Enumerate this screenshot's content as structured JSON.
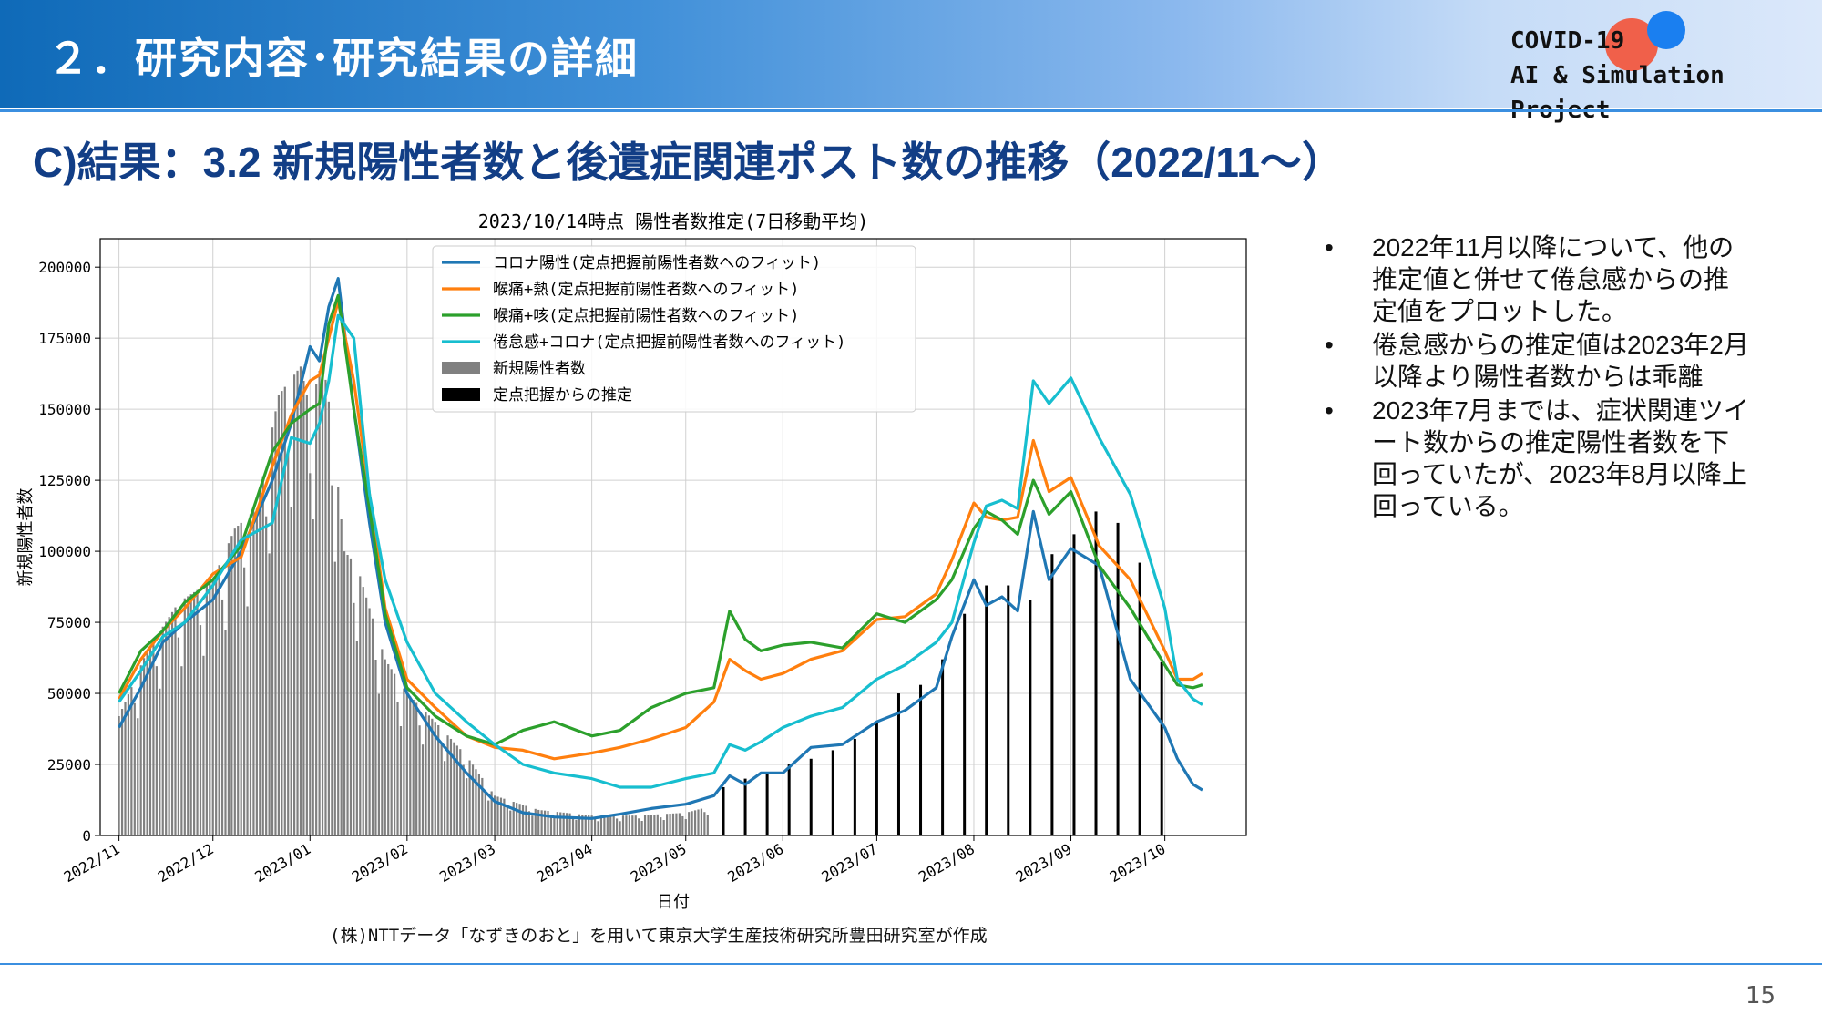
{
  "header": {
    "title": "２．研究内容･研究結果の詳細",
    "logo_line1": "COVID-19",
    "logo_line2": "AI & Simulation Project"
  },
  "subtitle": "C)結果：3.2 新規陽性者数と後遺症関連ポスト数の推移（2022/11～）",
  "bullets": [
    "2022年11月以降について、他の推定値と併せて倦怠感からの推定値をプロットした。",
    "倦怠感からの推定値は2023年2月以降より陽性者数からは乖離",
    "2023年7月までは、症状関連ツイート数からの推定陽性者数を下回っていたが、2023年8月以降上回っている。"
  ],
  "bullet_symbol": "•",
  "credit": "(株)NTTデータ「なずきのおと」を用いて東京大学生産技術研究所豊田研究室が作成",
  "page_number": "15",
  "colors": {
    "corona": "#1f77b4",
    "fever": "#ff7f0e",
    "cough": "#2ca02c",
    "fatigue": "#17becf",
    "bars": "#808080",
    "estimate": "#000000",
    "accent": "#123e86"
  },
  "chart_data": {
    "type": "line",
    "title": "2023/10/14時点 陽性者数推定(7日移動平均)",
    "xlabel": "日付",
    "ylabel": "新規陽性者数",
    "ylim": [
      0,
      210000
    ],
    "xlim": [
      "2022-10-26",
      "2023-10-27"
    ],
    "grid": true,
    "legend_position": "top-center",
    "x_ticks": [
      "2022/11",
      "2022/12",
      "2023/01",
      "2023/02",
      "2023/03",
      "2023/04",
      "2023/05",
      "2023/06",
      "2023/07",
      "2023/08",
      "2023/09",
      "2023/10"
    ],
    "x_tick_dates": [
      "2022-11-01",
      "2022-12-01",
      "2023-01-01",
      "2023-02-01",
      "2023-03-01",
      "2023-04-01",
      "2023-05-01",
      "2023-06-01",
      "2023-07-01",
      "2023-08-01",
      "2023-09-01",
      "2023-10-01"
    ],
    "y_ticks": [
      0,
      25000,
      50000,
      75000,
      100000,
      125000,
      150000,
      175000,
      200000
    ],
    "series": [
      {
        "name": "コロナ陽性(定点把握前陽性者数へのフィット)",
        "color": "#1f77b4",
        "x": [
          "2022-11-01",
          "2022-11-08",
          "2022-11-15",
          "2022-11-22",
          "2022-12-01",
          "2022-12-10",
          "2022-12-20",
          "2022-12-26",
          "2023-01-01",
          "2023-01-04",
          "2023-01-07",
          "2023-01-10",
          "2023-01-15",
          "2023-01-20",
          "2023-01-25",
          "2023-02-01",
          "2023-02-10",
          "2023-02-20",
          "2023-03-01",
          "2023-03-10",
          "2023-03-20",
          "2023-04-01",
          "2023-04-10",
          "2023-04-20",
          "2023-05-01",
          "2023-05-10",
          "2023-05-15",
          "2023-05-20",
          "2023-05-25",
          "2023-06-01",
          "2023-06-10",
          "2023-06-20",
          "2023-07-01",
          "2023-07-10",
          "2023-07-20",
          "2023-07-25",
          "2023-08-01",
          "2023-08-05",
          "2023-08-10",
          "2023-08-15",
          "2023-08-20",
          "2023-08-25",
          "2023-09-01",
          "2023-09-10",
          "2023-09-20",
          "2023-10-01",
          "2023-10-05",
          "2023-10-10",
          "2023-10-13"
        ],
        "values": [
          38000,
          52000,
          68000,
          75000,
          83000,
          100000,
          125000,
          145000,
          172000,
          167000,
          186000,
          196000,
          150000,
          110000,
          75000,
          50000,
          35000,
          22000,
          12000,
          8000,
          6500,
          6000,
          7500,
          9500,
          11000,
          14000,
          21000,
          18000,
          22000,
          22000,
          31000,
          32000,
          40000,
          44000,
          52000,
          70000,
          90000,
          81000,
          84000,
          79000,
          114000,
          90000,
          101000,
          95000,
          55000,
          38000,
          27000,
          18000,
          16000
        ]
      },
      {
        "name": "喉痛+熱(定点把握前陽性者数へのフィット)",
        "color": "#ff7f0e",
        "x": [
          "2022-11-01",
          "2022-11-08",
          "2022-11-15",
          "2022-11-22",
          "2022-12-01",
          "2022-12-10",
          "2022-12-20",
          "2022-12-26",
          "2023-01-01",
          "2023-01-04",
          "2023-01-07",
          "2023-01-10",
          "2023-01-15",
          "2023-01-20",
          "2023-01-25",
          "2023-02-01",
          "2023-02-10",
          "2023-02-20",
          "2023-03-01",
          "2023-03-10",
          "2023-03-20",
          "2023-04-01",
          "2023-04-10",
          "2023-04-20",
          "2023-05-01",
          "2023-05-10",
          "2023-05-15",
          "2023-05-20",
          "2023-05-25",
          "2023-06-01",
          "2023-06-10",
          "2023-06-20",
          "2023-07-01",
          "2023-07-10",
          "2023-07-20",
          "2023-07-25",
          "2023-08-01",
          "2023-08-05",
          "2023-08-10",
          "2023-08-15",
          "2023-08-20",
          "2023-08-25",
          "2023-09-01",
          "2023-09-10",
          "2023-09-20",
          "2023-10-01",
          "2023-10-05",
          "2023-10-10",
          "2023-10-13"
        ],
        "values": [
          48000,
          62000,
          72000,
          80000,
          92000,
          98000,
          130000,
          148000,
          160000,
          162000,
          175000,
          188000,
          160000,
          120000,
          80000,
          55000,
          45000,
          35000,
          31000,
          30000,
          27000,
          29000,
          31000,
          34000,
          38000,
          47000,
          62000,
          58000,
          55000,
          57000,
          62000,
          65000,
          76000,
          77000,
          85000,
          97000,
          117000,
          112000,
          111000,
          112000,
          139000,
          121000,
          126000,
          102000,
          90000,
          65000,
          55000,
          55000,
          57000
        ]
      },
      {
        "name": "喉痛+咳(定点把握前陽性者数へのフィット)",
        "color": "#2ca02c",
        "x": [
          "2022-11-01",
          "2022-11-08",
          "2022-11-15",
          "2022-11-22",
          "2022-12-01",
          "2022-12-10",
          "2022-12-20",
          "2022-12-26",
          "2023-01-01",
          "2023-01-04",
          "2023-01-07",
          "2023-01-10",
          "2023-01-15",
          "2023-01-20",
          "2023-01-25",
          "2023-02-01",
          "2023-02-10",
          "2023-02-20",
          "2023-03-01",
          "2023-03-10",
          "2023-03-20",
          "2023-04-01",
          "2023-04-10",
          "2023-04-20",
          "2023-05-01",
          "2023-05-10",
          "2023-05-15",
          "2023-05-20",
          "2023-05-25",
          "2023-06-01",
          "2023-06-10",
          "2023-06-20",
          "2023-07-01",
          "2023-07-10",
          "2023-07-20",
          "2023-07-25",
          "2023-08-01",
          "2023-08-05",
          "2023-08-10",
          "2023-08-15",
          "2023-08-20",
          "2023-08-25",
          "2023-09-01",
          "2023-09-10",
          "2023-09-20",
          "2023-10-01",
          "2023-10-05",
          "2023-10-10",
          "2023-10-13"
        ],
        "values": [
          50000,
          65000,
          72000,
          82000,
          90000,
          102000,
          135000,
          145000,
          150000,
          152000,
          180000,
          190000,
          150000,
          115000,
          78000,
          52000,
          42000,
          35000,
          32000,
          37000,
          40000,
          35000,
          37000,
          45000,
          50000,
          52000,
          79000,
          69000,
          65000,
          67000,
          68000,
          66000,
          78000,
          75000,
          83000,
          90000,
          108000,
          114000,
          111000,
          106000,
          125000,
          113000,
          121000,
          95000,
          80000,
          60000,
          53000,
          52000,
          53000
        ]
      },
      {
        "name": "倦怠感+コロナ(定点把握前陽性者数へのフィット)",
        "color": "#17becf",
        "x": [
          "2022-11-01",
          "2022-11-08",
          "2022-11-15",
          "2022-11-22",
          "2022-12-01",
          "2022-12-10",
          "2022-12-20",
          "2022-12-26",
          "2023-01-01",
          "2023-01-04",
          "2023-01-07",
          "2023-01-10",
          "2023-01-15",
          "2023-01-20",
          "2023-01-25",
          "2023-02-01",
          "2023-02-10",
          "2023-02-20",
          "2023-03-01",
          "2023-03-10",
          "2023-03-20",
          "2023-04-01",
          "2023-04-10",
          "2023-04-20",
          "2023-05-01",
          "2023-05-10",
          "2023-05-15",
          "2023-05-20",
          "2023-05-25",
          "2023-06-01",
          "2023-06-10",
          "2023-06-20",
          "2023-07-01",
          "2023-07-10",
          "2023-07-20",
          "2023-07-25",
          "2023-08-01",
          "2023-08-05",
          "2023-08-10",
          "2023-08-15",
          "2023-08-20",
          "2023-08-25",
          "2023-09-01",
          "2023-09-10",
          "2023-09-20",
          "2023-10-01",
          "2023-10-05",
          "2023-10-10",
          "2023-10-13"
        ],
        "values": [
          47000,
          58000,
          70000,
          75000,
          88000,
          104000,
          110000,
          140000,
          138000,
          145000,
          160000,
          183000,
          175000,
          120000,
          90000,
          68000,
          50000,
          40000,
          32000,
          25000,
          22000,
          20000,
          17000,
          17000,
          20000,
          22000,
          32000,
          30000,
          33000,
          38000,
          42000,
          45000,
          55000,
          60000,
          68000,
          75000,
          103000,
          116000,
          118000,
          115000,
          160000,
          152000,
          161000,
          140000,
          120000,
          80000,
          55000,
          48000,
          46000
        ]
      }
    ],
    "bars": [
      {
        "name": "新規陽性者数",
        "color": "#808080",
        "x": [
          "2022-11-01",
          "2022-11-10",
          "2022-11-20",
          "2022-12-01",
          "2022-12-08",
          "2022-12-15",
          "2022-12-22",
          "2022-12-29",
          "2023-01-01",
          "2023-01-05",
          "2023-01-08",
          "2023-01-12",
          "2023-01-16",
          "2023-01-20",
          "2023-01-25",
          "2023-02-01",
          "2023-02-10",
          "2023-02-20",
          "2023-03-01",
          "2023-03-15",
          "2023-04-01",
          "2023-04-15",
          "2023-05-01",
          "2023-05-08"
        ],
        "values": [
          42000,
          65000,
          82000,
          90000,
          108000,
          115000,
          155000,
          165000,
          150000,
          168000,
          145000,
          100000,
          95000,
          80000,
          62000,
          50000,
          40000,
          28000,
          14000,
          9000,
          7000,
          7000,
          8000,
          10000
        ]
      },
      {
        "name": "定点把握からの推定",
        "color": "#000000",
        "x": [
          "2023-05-13",
          "2023-05-20",
          "2023-05-27",
          "2023-06-03",
          "2023-06-10",
          "2023-06-17",
          "2023-06-24",
          "2023-07-01",
          "2023-07-08",
          "2023-07-15",
          "2023-07-22",
          "2023-07-29",
          "2023-08-05",
          "2023-08-12",
          "2023-08-19",
          "2023-08-26",
          "2023-09-02",
          "2023-09-09",
          "2023-09-16",
          "2023-09-23",
          "2023-09-30"
        ],
        "values": [
          17000,
          20000,
          22000,
          25000,
          27000,
          30000,
          34000,
          40000,
          50000,
          53000,
          62000,
          78000,
          88000,
          88000,
          83000,
          99000,
          106000,
          114000,
          110000,
          96000,
          61000
        ]
      }
    ]
  }
}
